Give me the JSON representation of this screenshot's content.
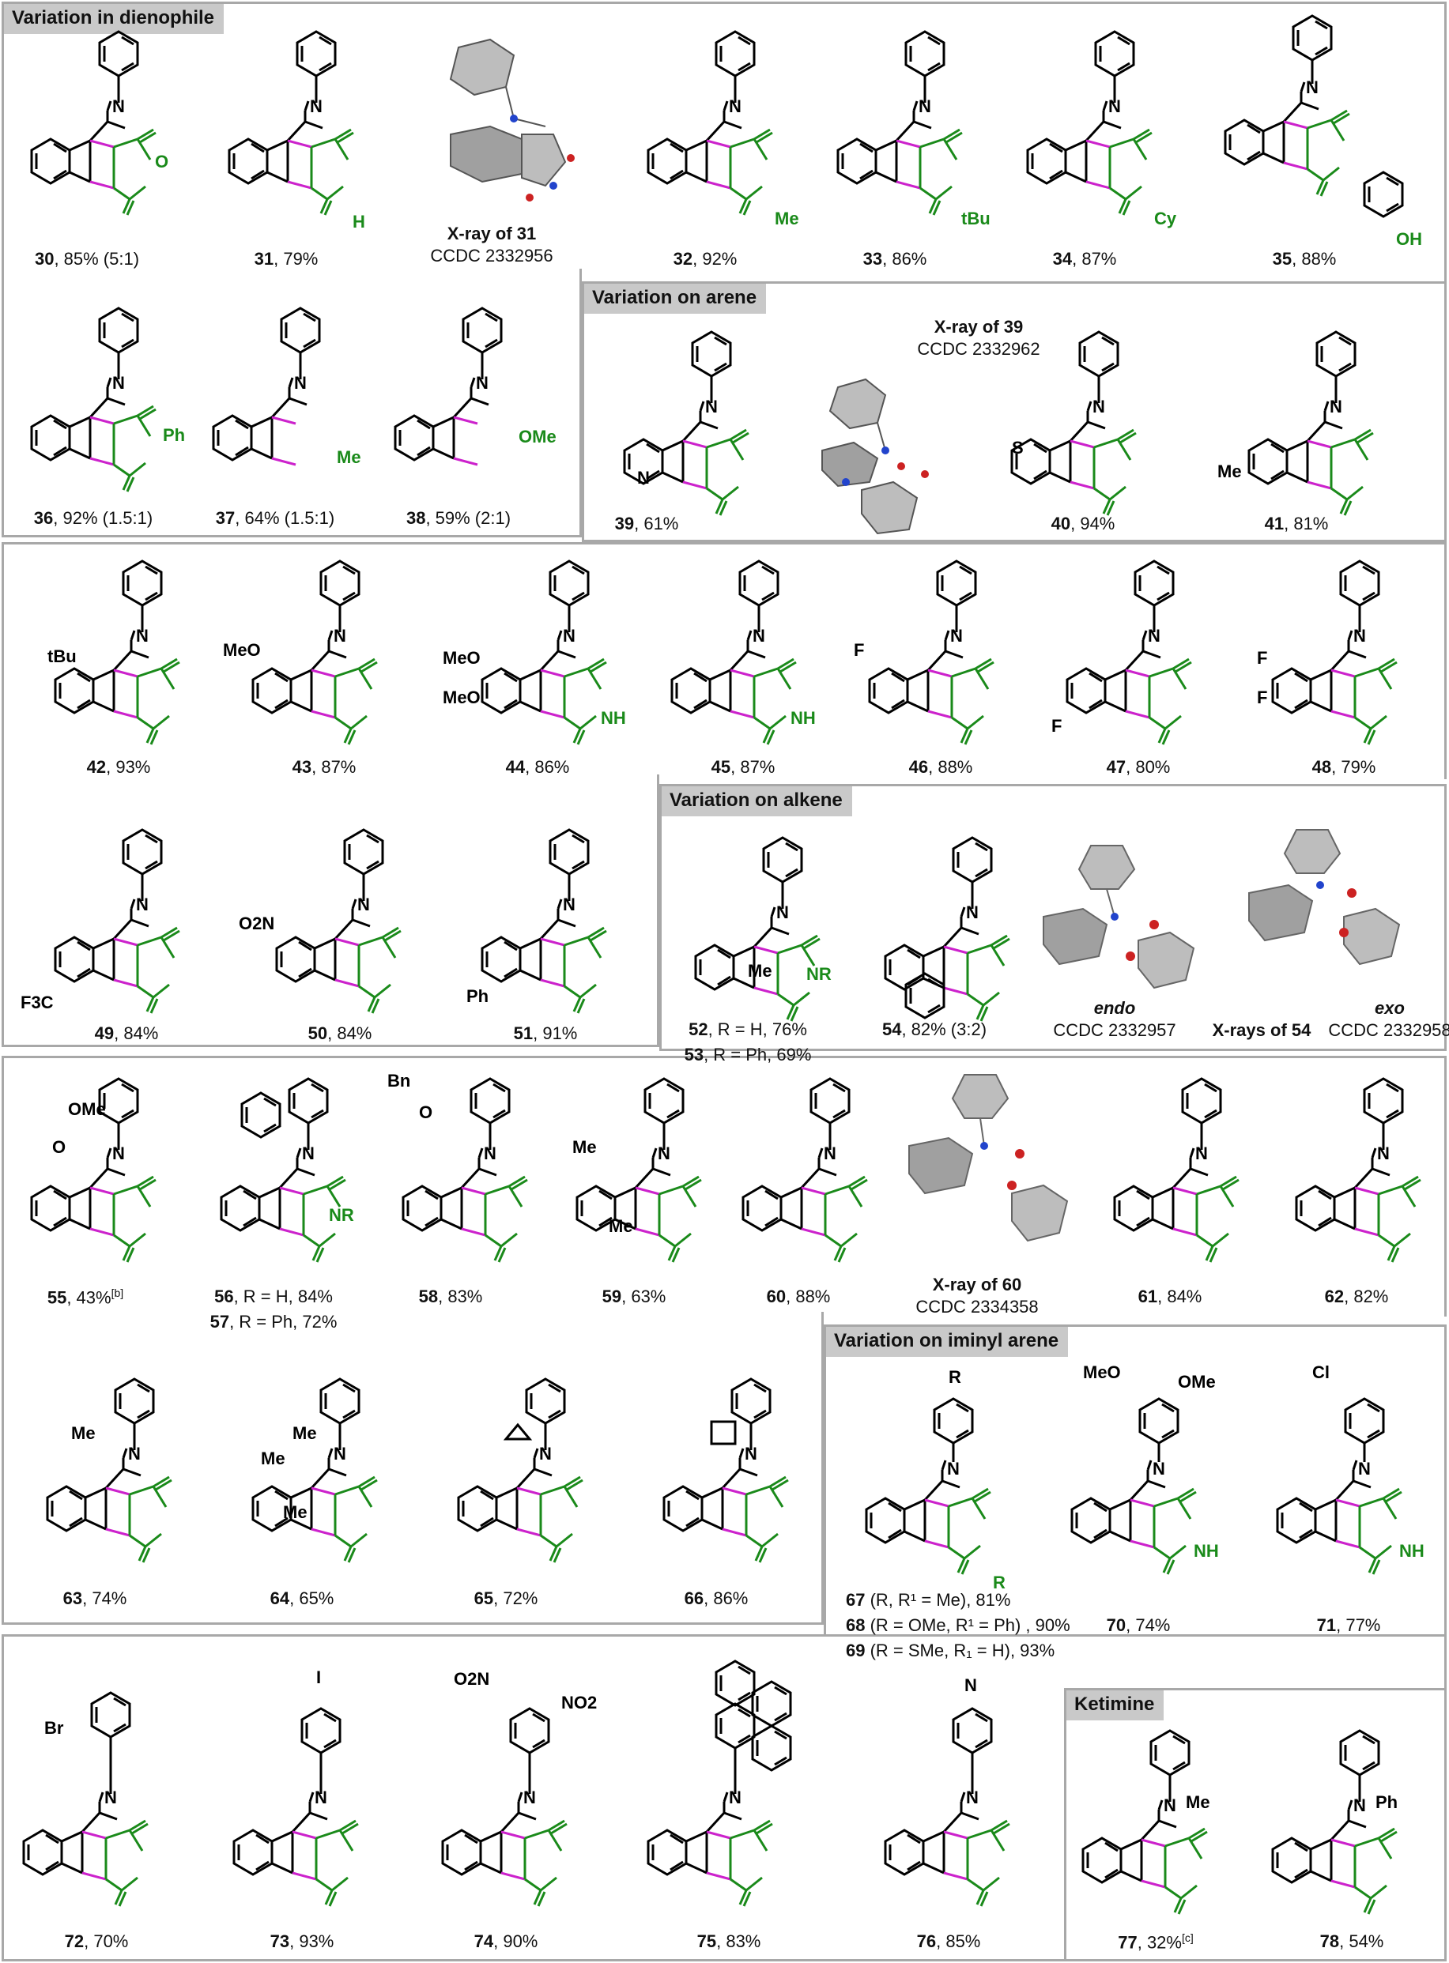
{
  "colors": {
    "scaffold": "#000000",
    "new_bond": "#cc22cc",
    "dienophile": "#1a8a1a",
    "panel_border": "#a8a8a8",
    "title_bg": "#c9c9c9"
  },
  "panels": {
    "dienophile": "Variation in dienophile",
    "arene": "Variation on arene",
    "alkene": "Variation on alkene",
    "iminyl": "Variation on iminyl arene",
    "ketimine": "Ketimine"
  },
  "compounds": [
    {
      "id": "30",
      "rest": ", 85% (5:1)"
    },
    {
      "id": "31",
      "rest": ", 79%"
    },
    {
      "id": "32",
      "rest": ", 92%"
    },
    {
      "id": "33",
      "rest": ", 86%"
    },
    {
      "id": "34",
      "rest": ", 87%"
    },
    {
      "id": "35",
      "rest": ", 88%"
    },
    {
      "id": "36",
      "rest": ", 92% (1.5:1)"
    },
    {
      "id": "37",
      "rest": ", 64% (1.5:1)"
    },
    {
      "id": "38",
      "rest": ", 59% (2:1)"
    },
    {
      "id": "39",
      "rest": ", 61%"
    },
    {
      "id": "40",
      "rest": ", 94%"
    },
    {
      "id": "41",
      "rest": ", 81%"
    },
    {
      "id": "42",
      "rest": ", 93%"
    },
    {
      "id": "43",
      "rest": ", 87%"
    },
    {
      "id": "44",
      "rest": ", 86%"
    },
    {
      "id": "45",
      "rest": ", 87%"
    },
    {
      "id": "46",
      "rest": ", 88%"
    },
    {
      "id": "47",
      "rest": ", 80%"
    },
    {
      "id": "48",
      "rest": ", 79%"
    },
    {
      "id": "49",
      "rest": ", 84%"
    },
    {
      "id": "50",
      "rest": ", 84%"
    },
    {
      "id": "51",
      "rest": ", 91%"
    },
    {
      "id": "52",
      "rest": ", R = H, 76%"
    },
    {
      "id": "53",
      "rest": ", R = Ph, 69%"
    },
    {
      "id": "54",
      "rest": ", 82% (3:2)"
    },
    {
      "id": "55",
      "rest": ", 43%",
      "sup": "[b]"
    },
    {
      "id": "56",
      "rest": ", R = H, 84%"
    },
    {
      "id": "57",
      "rest": ", R = Ph, 72%"
    },
    {
      "id": "58",
      "rest": ", 83%"
    },
    {
      "id": "59",
      "rest": ", 63%"
    },
    {
      "id": "60",
      "rest": ", 88%"
    },
    {
      "id": "61",
      "rest": ", 84%"
    },
    {
      "id": "62",
      "rest": ", 82%"
    },
    {
      "id": "63",
      "rest": ", 74%"
    },
    {
      "id": "64",
      "rest": ", 65%"
    },
    {
      "id": "65",
      "rest": ", 72%"
    },
    {
      "id": "66",
      "rest": ", 86%"
    },
    {
      "id": "67",
      "rest": " (R, R¹ = Me), 81%"
    },
    {
      "id": "68",
      "rest": " (R = OMe, R¹ = Ph) , 90%"
    },
    {
      "id": "69",
      "rest": " (R = SMe, R₁ = H), 93%"
    },
    {
      "id": "70",
      "rest": ", 74%"
    },
    {
      "id": "71",
      "rest": ", 77%"
    },
    {
      "id": "72",
      "rest": ", 70%"
    },
    {
      "id": "73",
      "rest": ", 93%"
    },
    {
      "id": "74",
      "rest": ", 90%"
    },
    {
      "id": "75",
      "rest": ", 83%"
    },
    {
      "id": "76",
      "rest": ", 85%"
    },
    {
      "id": "77",
      "rest": ", 32%",
      "sup": "[c]"
    },
    {
      "id": "78",
      "rest": ", 54%"
    }
  ],
  "substituents": {
    "c30": "O",
    "c31": "H",
    "c32": "Me",
    "c33": "tBu",
    "c34": "Cy",
    "c35": "OH",
    "c36": "Ph",
    "c37": "Me",
    "c38": "OMe",
    "c39": "N",
    "c40": "S",
    "c41": "Me",
    "c42": "tBu",
    "c43": "MeO",
    "c44a": "MeO",
    "c44b": "MeO",
    "c44nh": "NH",
    "c45nh": "NH",
    "c46": "F",
    "c47": "F",
    "c48a": "F",
    "c48b": "F",
    "c49": "F3C",
    "c50": "O2N",
    "c51": "Ph",
    "c52r": "NR",
    "c52me": "Me",
    "c54": "Ph",
    "c55a": "OMe",
    "c55b": "O",
    "c56r": "NR",
    "c58a": "Bn",
    "c58b": "O",
    "c59a": "Me",
    "c59b": "Me",
    "c63": "Me",
    "c64a": "Me",
    "c64b": "Me",
    "c64c": "Me",
    "c67r": "R",
    "c67r1": "R",
    "c70a": "MeO",
    "c70b": "OMe",
    "c70nh": "NH",
    "c71a": "Cl",
    "c71nh": "NH",
    "c72": "Br",
    "c73": "I",
    "c74a": "O2N",
    "c74b": "NO2",
    "c77": "Me",
    "c78": "Ph",
    "atom_N": "N",
    "atom_O": "O",
    "atom_Ph": "Ph",
    "atom_Me": "Me"
  },
  "xray": {
    "x31_title": "X-ray of ",
    "x31_id": "31",
    "x31_ccdc": "CCDC 2332956",
    "x39_title": "X-ray of ",
    "x39_id": "39",
    "x39_ccdc": "CCDC 2332962",
    "x54_endo": "endo",
    "x54_endo_ccdc": "CCDC 2332957",
    "x54_title": "X-rays of ",
    "x54_id": "54",
    "x54_exo": "exo",
    "x54_exo_ccdc": "CCDC 2332958",
    "x60_title": "X-ray of ",
    "x60_id": "60",
    "x60_ccdc": "CCDC 2334358"
  }
}
